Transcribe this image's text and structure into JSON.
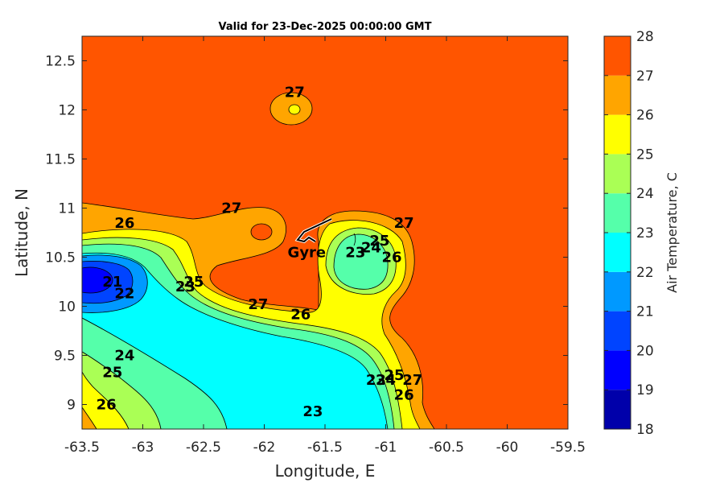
{
  "chart_data": {
    "type": "heatmap",
    "title": "Valid for 23-Dec-2025 00:00:00 GMT",
    "xlabel": "Longitude, E",
    "ylabel": "Latitude, N",
    "xlim": [
      -63.5,
      -59.5
    ],
    "ylim": [
      8.75,
      12.75
    ],
    "xticks": [
      "-63.5",
      "-63",
      "-62.5",
      "-62",
      "-61.5",
      "-61",
      "-60.5",
      "-60",
      "-59.5"
    ],
    "yticks": [
      "9",
      "9.5",
      "10",
      "10.5",
      "11",
      "11.5",
      "12",
      "12.5"
    ],
    "colorbar": {
      "label": "Air Temperature, C",
      "ticks": [
        "18",
        "19",
        "20",
        "21",
        "22",
        "23",
        "24",
        "25",
        "26",
        "27",
        "28"
      ],
      "levels": [
        18,
        19,
        20,
        21,
        22,
        23,
        24,
        25,
        26,
        27,
        28
      ],
      "colors": [
        "#0000aa",
        "#0000ff",
        "#0044ff",
        "#0099ff",
        "#00ffff",
        "#55ffaa",
        "#aaff55",
        "#ffff00",
        "#ffa500",
        "#ff5500",
        "#ff0000"
      ]
    },
    "contour_labels": [
      {
        "text": "27",
        "lon": -61.75,
        "lat": 12.13
      },
      {
        "text": "27",
        "lon": -62.27,
        "lat": 10.95
      },
      {
        "text": "27",
        "lon": -60.85,
        "lat": 10.8
      },
      {
        "text": "26",
        "lon": -63.15,
        "lat": 10.8
      },
      {
        "text": "21",
        "lon": -63.25,
        "lat": 10.2
      },
      {
        "text": "22",
        "lon": -63.15,
        "lat": 10.08
      },
      {
        "text": "23",
        "lon": -62.65,
        "lat": 10.15
      },
      {
        "text": "25",
        "lon": -62.58,
        "lat": 10.2
      },
      {
        "text": "27",
        "lon": -62.05,
        "lat": 9.97
      },
      {
        "text": "26",
        "lon": -61.7,
        "lat": 9.87
      },
      {
        "text": "23",
        "lon": -61.25,
        "lat": 10.5
      },
      {
        "text": "24",
        "lon": -61.12,
        "lat": 10.55
      },
      {
        "text": "25",
        "lon": -61.05,
        "lat": 10.62
      },
      {
        "text": "26",
        "lon": -60.95,
        "lat": 10.45
      },
      {
        "text": "24",
        "lon": -63.15,
        "lat": 9.45
      },
      {
        "text": "25",
        "lon": -63.25,
        "lat": 9.28
      },
      {
        "text": "26",
        "lon": -63.3,
        "lat": 8.95
      },
      {
        "text": "23",
        "lon": -61.6,
        "lat": 8.88
      },
      {
        "text": "23",
        "lon": -61.08,
        "lat": 9.2
      },
      {
        "text": "24",
        "lon": -61.0,
        "lat": 9.2
      },
      {
        "text": "25",
        "lon": -60.93,
        "lat": 9.25
      },
      {
        "text": "27",
        "lon": -60.78,
        "lat": 9.2
      },
      {
        "text": "26",
        "lon": -60.85,
        "lat": 9.05
      }
    ],
    "annotation": {
      "text": "Gyre",
      "lon": -61.65,
      "lat": 10.5
    }
  }
}
